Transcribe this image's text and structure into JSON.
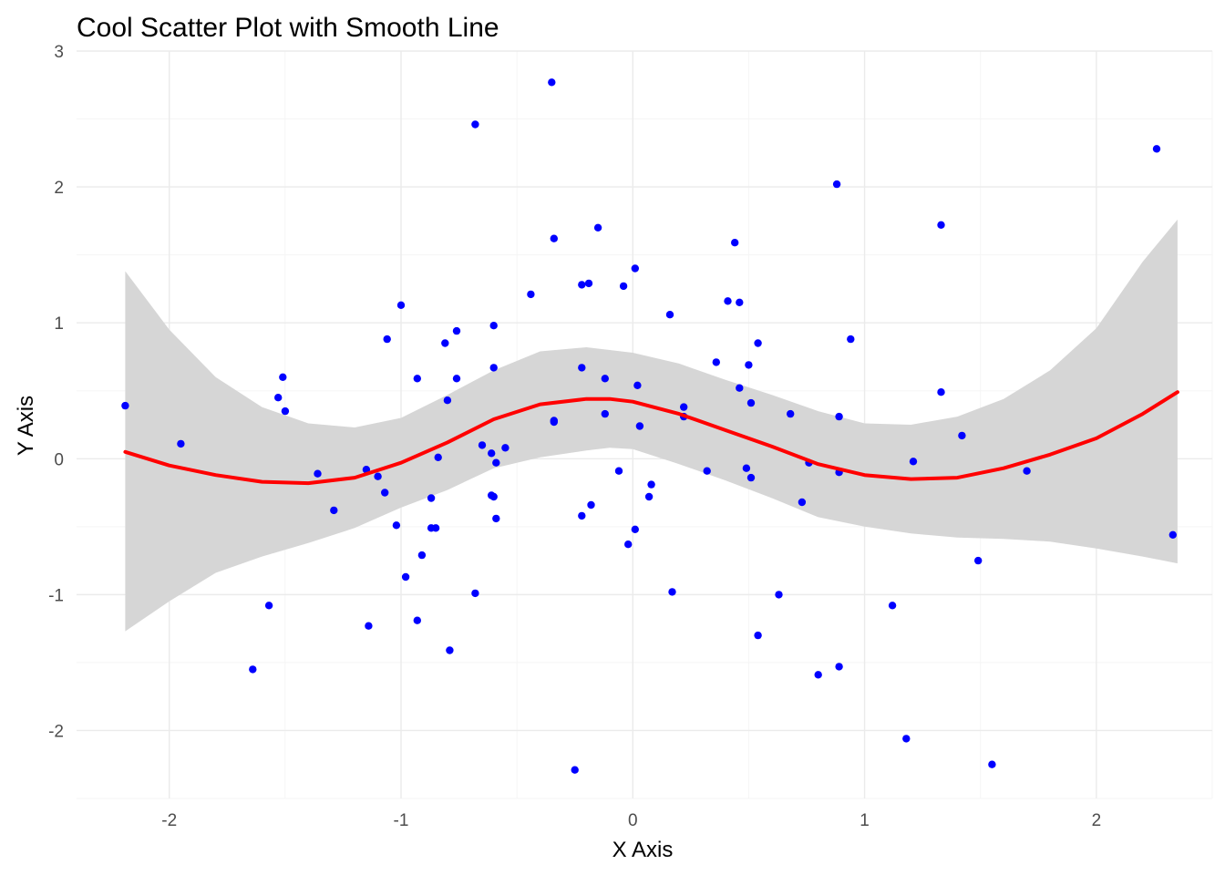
{
  "chart_data": {
    "type": "scatter",
    "title": "Cool Scatter Plot with Smooth Line",
    "xlabel": "X Axis",
    "ylabel": "Y Axis",
    "xlim": [
      -2.4,
      2.5
    ],
    "ylim": [
      -2.5,
      3.0
    ],
    "x_ticks": [
      -2,
      -1,
      0,
      1,
      2
    ],
    "x_tick_labels": [
      "-2",
      "-1",
      "0",
      "1",
      "2"
    ],
    "y_ticks": [
      -2,
      -1,
      0,
      1,
      2,
      3
    ],
    "y_tick_labels": [
      "-2",
      "-1",
      "0",
      "1",
      "2",
      "3"
    ],
    "grid": true,
    "legend": "none",
    "colors": {
      "points": "#0000ff",
      "line": "#ff0000",
      "band": "#d6d6d6",
      "grid": "#ebebeb"
    },
    "points": [
      [
        -2.19,
        0.39
      ],
      [
        -1.95,
        0.11
      ],
      [
        -1.64,
        -1.55
      ],
      [
        -1.57,
        -1.08
      ],
      [
        -1.53,
        0.45
      ],
      [
        -1.51,
        0.6
      ],
      [
        -1.5,
        0.35
      ],
      [
        -1.36,
        -0.11
      ],
      [
        -1.29,
        -0.38
      ],
      [
        -1.15,
        -0.08
      ],
      [
        -1.14,
        -1.23
      ],
      [
        -1.1,
        -0.13
      ],
      [
        -1.07,
        -0.25
      ],
      [
        -1.06,
        0.88
      ],
      [
        -1.02,
        -0.49
      ],
      [
        -1.0,
        1.13
      ],
      [
        -0.98,
        -0.87
      ],
      [
        -0.93,
        0.59
      ],
      [
        -0.93,
        -1.19
      ],
      [
        -0.91,
        -0.71
      ],
      [
        -0.87,
        -0.29
      ],
      [
        -0.87,
        -0.51
      ],
      [
        -0.85,
        -0.51
      ],
      [
        -0.84,
        0.01
      ],
      [
        -0.81,
        0.85
      ],
      [
        -0.8,
        0.43
      ],
      [
        -0.79,
        -1.41
      ],
      [
        -0.76,
        0.59
      ],
      [
        -0.76,
        0.94
      ],
      [
        -0.68,
        2.46
      ],
      [
        -0.68,
        -0.99
      ],
      [
        -0.65,
        0.1
      ],
      [
        -0.61,
        0.04
      ],
      [
        -0.61,
        -0.27
      ],
      [
        -0.6,
        0.98
      ],
      [
        -0.6,
        0.67
      ],
      [
        -0.6,
        -0.28
      ],
      [
        -0.59,
        -0.03
      ],
      [
        -0.59,
        -0.44
      ],
      [
        -0.55,
        0.08
      ],
      [
        -0.44,
        1.21
      ],
      [
        -0.35,
        2.77
      ],
      [
        -0.34,
        1.62
      ],
      [
        -0.34,
        0.28
      ],
      [
        -0.34,
        0.27
      ],
      [
        -0.25,
        -2.29
      ],
      [
        -0.22,
        0.67
      ],
      [
        -0.22,
        1.28
      ],
      [
        -0.22,
        -0.42
      ],
      [
        -0.19,
        1.29
      ],
      [
        -0.18,
        -0.34
      ],
      [
        -0.15,
        1.7
      ],
      [
        -0.12,
        0.59
      ],
      [
        -0.12,
        0.33
      ],
      [
        -0.06,
        -0.09
      ],
      [
        -0.04,
        1.27
      ],
      [
        -0.02,
        -0.63
      ],
      [
        0.01,
        1.4
      ],
      [
        0.01,
        -0.52
      ],
      [
        0.02,
        0.54
      ],
      [
        0.03,
        0.24
      ],
      [
        0.07,
        -0.28
      ],
      [
        0.08,
        -0.19
      ],
      [
        0.16,
        1.06
      ],
      [
        0.17,
        -0.98
      ],
      [
        0.22,
        0.38
      ],
      [
        0.22,
        0.31
      ],
      [
        0.32,
        -0.09
      ],
      [
        0.36,
        0.71
      ],
      [
        0.41,
        1.16
      ],
      [
        0.44,
        1.59
      ],
      [
        0.46,
        1.15
      ],
      [
        0.46,
        0.52
      ],
      [
        0.49,
        -0.07
      ],
      [
        0.5,
        0.69
      ],
      [
        0.51,
        0.41
      ],
      [
        0.51,
        -0.14
      ],
      [
        0.54,
        0.85
      ],
      [
        0.54,
        -1.3
      ],
      [
        0.63,
        -1.0
      ],
      [
        0.68,
        0.33
      ],
      [
        0.73,
        -0.32
      ],
      [
        0.76,
        -0.03
      ],
      [
        0.8,
        -1.59
      ],
      [
        0.88,
        2.02
      ],
      [
        0.89,
        0.31
      ],
      [
        0.89,
        -0.1
      ],
      [
        0.89,
        -1.53
      ],
      [
        0.94,
        0.88
      ],
      [
        1.12,
        -1.08
      ],
      [
        1.18,
        -2.06
      ],
      [
        1.21,
        -0.02
      ],
      [
        1.33,
        0.49
      ],
      [
        1.33,
        1.72
      ],
      [
        1.42,
        0.17
      ],
      [
        1.49,
        -0.75
      ],
      [
        1.55,
        -2.25
      ],
      [
        1.7,
        -0.09
      ],
      [
        2.26,
        2.28
      ],
      [
        2.33,
        -0.56
      ]
    ],
    "smooth": {
      "method": "loess",
      "x": [
        -2.19,
        -2.0,
        -1.8,
        -1.6,
        -1.4,
        -1.2,
        -1.0,
        -0.8,
        -0.6,
        -0.4,
        -0.2,
        -0.1,
        0.0,
        0.2,
        0.4,
        0.6,
        0.8,
        1.0,
        1.2,
        1.4,
        1.6,
        1.8,
        2.0,
        2.2,
        2.35
      ],
      "y": [
        0.05,
        -0.05,
        -0.12,
        -0.17,
        -0.18,
        -0.14,
        -0.03,
        0.12,
        0.29,
        0.4,
        0.44,
        0.44,
        0.42,
        0.33,
        0.21,
        0.09,
        -0.04,
        -0.12,
        -0.15,
        -0.14,
        -0.07,
        0.03,
        0.15,
        0.33,
        0.49
      ],
      "ci_upper": [
        1.38,
        0.95,
        0.6,
        0.38,
        0.26,
        0.23,
        0.3,
        0.47,
        0.65,
        0.79,
        0.82,
        0.8,
        0.78,
        0.7,
        0.58,
        0.47,
        0.35,
        0.26,
        0.25,
        0.31,
        0.44,
        0.65,
        0.96,
        1.45,
        1.76
      ],
      "ci_lower": [
        -1.27,
        -1.05,
        -0.84,
        -0.72,
        -0.62,
        -0.51,
        -0.36,
        -0.23,
        -0.07,
        0.01,
        0.06,
        0.08,
        0.07,
        -0.04,
        -0.16,
        -0.29,
        -0.43,
        -0.5,
        -0.55,
        -0.58,
        -0.59,
        -0.61,
        -0.66,
        -0.72,
        -0.77
      ]
    }
  }
}
